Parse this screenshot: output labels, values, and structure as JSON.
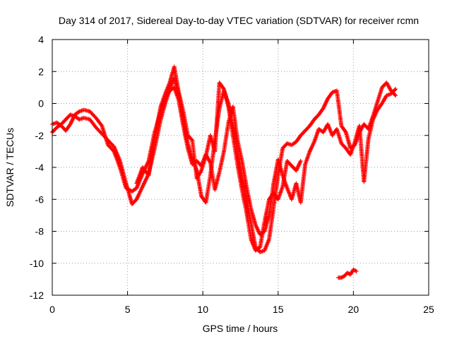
{
  "chart_data": {
    "type": "scatter",
    "title": "Day 314 of 2017, Sidereal Day-to-day VTEC variation (SDTVAR) for receiver rcmn",
    "xlabel": "GPS time / hours",
    "ylabel": "SDTVAR / TECUs",
    "xlim": [
      0,
      25
    ],
    "ylim": [
      -12,
      4
    ],
    "xticks": [
      0,
      5,
      10,
      15,
      20,
      25
    ],
    "yticks": [
      4,
      2,
      0,
      -2,
      -4,
      -6,
      -8,
      -10,
      -12
    ],
    "xtick_labels": [
      "0",
      "5",
      "10",
      "15",
      "20",
      "25"
    ],
    "ytick_labels": [
      "4",
      "2",
      "0",
      "-2",
      "-4",
      "-6",
      "-8",
      "-10",
      "-12"
    ],
    "grid": true,
    "marker": "+",
    "color": "#ff0000",
    "series": [
      {
        "values": [
          [
            0.0,
            -1.8
          ],
          [
            0.3,
            -1.5
          ],
          [
            0.6,
            -1.3
          ],
          [
            0.9,
            -1.0
          ],
          [
            1.2,
            -0.7
          ],
          [
            1.5,
            -0.8
          ],
          [
            1.8,
            -1.0
          ],
          [
            2.1,
            -0.9
          ],
          [
            2.5,
            -1.0
          ],
          [
            2.9,
            -1.5
          ],
          [
            3.3,
            -1.9
          ],
          [
            3.7,
            -2.3
          ],
          [
            4.1,
            -2.7
          ],
          [
            4.5,
            -3.6
          ],
          [
            4.9,
            -5.0
          ],
          [
            5.3,
            -6.3
          ],
          [
            5.6,
            -6.0
          ],
          [
            6.0,
            -5.2
          ],
          [
            6.4,
            -4.4
          ],
          [
            6.8,
            -2.8
          ],
          [
            7.2,
            -1.0
          ],
          [
            7.5,
            0.0
          ],
          [
            7.8,
            0.9
          ],
          [
            8.1,
            1.6
          ],
          [
            8.4,
            0.5
          ],
          [
            8.7,
            -1.0
          ],
          [
            9.0,
            -2.5
          ],
          [
            9.3,
            -3.5
          ],
          [
            9.6,
            -4.2
          ],
          [
            9.9,
            -5.8
          ],
          [
            10.2,
            -6.2
          ],
          [
            10.5,
            -4.5
          ],
          [
            10.8,
            -2.3
          ],
          [
            11.1,
            -0.3
          ],
          [
            11.4,
            0.8
          ],
          [
            11.7,
            0.0
          ],
          [
            12.0,
            -1.5
          ],
          [
            12.3,
            -3.0
          ],
          [
            12.6,
            -4.6
          ],
          [
            12.9,
            -6.0
          ],
          [
            13.2,
            -7.5
          ],
          [
            13.5,
            -9.0
          ],
          [
            13.8,
            -9.3
          ],
          [
            14.1,
            -9.2
          ],
          [
            14.4,
            -8.5
          ],
          [
            14.7,
            -6.5
          ],
          [
            15.0,
            -4.5
          ],
          [
            15.3,
            -2.8
          ],
          [
            15.6,
            -2.5
          ],
          [
            15.9,
            -2.6
          ],
          [
            16.2,
            -2.4
          ],
          [
            16.5,
            -2.0
          ],
          [
            16.8,
            -1.7
          ],
          [
            17.1,
            -1.4
          ],
          [
            17.4,
            -1.0
          ],
          [
            17.7,
            -0.7
          ],
          [
            18.0,
            -0.3
          ],
          [
            18.3,
            0.3
          ],
          [
            18.6,
            0.7
          ],
          [
            18.9,
            0.8
          ],
          [
            19.2,
            -1.4
          ],
          [
            19.5,
            -1.8
          ],
          [
            19.8,
            -2.8
          ],
          [
            20.1,
            -2.6
          ],
          [
            20.4,
            -1.8
          ],
          [
            20.7,
            -1.3
          ],
          [
            21.0,
            -1.6
          ],
          [
            21.3,
            -0.8
          ],
          [
            21.6,
            0.1
          ],
          [
            21.9,
            1.0
          ],
          [
            22.2,
            1.3
          ],
          [
            22.5,
            0.8
          ],
          [
            22.8,
            0.5
          ]
        ]
      },
      {
        "values": [
          [
            0.0,
            -1.3
          ],
          [
            0.3,
            -1.2
          ],
          [
            0.6,
            -1.4
          ],
          [
            0.9,
            -1.7
          ],
          [
            1.2,
            -1.3
          ],
          [
            1.5,
            -0.7
          ],
          [
            1.8,
            -0.5
          ],
          [
            2.1,
            -0.4
          ],
          [
            2.5,
            -0.5
          ],
          [
            2.9,
            -0.9
          ],
          [
            3.3,
            -1.4
          ],
          [
            3.7,
            -2.6
          ],
          [
            4.1,
            -3.0
          ],
          [
            4.5,
            -4.0
          ],
          [
            4.9,
            -5.3
          ],
          [
            5.3,
            -5.5
          ],
          [
            5.6,
            -5.3
          ],
          [
            6.0,
            -4.4
          ],
          [
            6.4,
            -3.6
          ],
          [
            6.8,
            -1.8
          ],
          [
            7.2,
            -0.5
          ],
          [
            7.5,
            0.3
          ],
          [
            7.8,
            0.8
          ],
          [
            8.1,
            1.0
          ],
          [
            8.4,
            0.2
          ],
          [
            8.7,
            -1.4
          ],
          [
            9.0,
            -2.8
          ],
          [
            9.3,
            -3.8
          ],
          [
            9.6,
            -3.6
          ],
          [
            9.9,
            -3.9
          ],
          [
            10.2,
            -3.2
          ],
          [
            10.5,
            -3.7
          ],
          [
            10.8,
            -5.4
          ],
          [
            11.1,
            -4.3
          ],
          [
            11.4,
            -3.0
          ],
          [
            11.7,
            -1.2
          ],
          [
            12.0,
            -0.2
          ],
          [
            12.3,
            -2.3
          ],
          [
            12.6,
            -3.6
          ],
          [
            12.9,
            -5.2
          ],
          [
            13.2,
            -6.6
          ],
          [
            13.5,
            -7.6
          ],
          [
            13.8,
            -8.2
          ],
          [
            14.1,
            -8.0
          ],
          [
            14.4,
            -7.0
          ],
          [
            14.7,
            -5.0
          ],
          [
            15.0,
            -3.5
          ],
          [
            15.3,
            -4.5
          ],
          [
            15.6,
            -5.3
          ],
          [
            15.9,
            -6.0
          ],
          [
            16.2,
            -5.0
          ],
          [
            16.5,
            -6.2
          ],
          [
            16.8,
            -3.8
          ],
          [
            17.1,
            -3.0
          ],
          [
            17.4,
            -2.4
          ],
          [
            17.7,
            -1.6
          ],
          [
            18.0,
            -1.8
          ],
          [
            18.3,
            -1.3
          ],
          [
            18.6,
            -2.0
          ],
          [
            18.9,
            -1.6
          ],
          [
            19.2,
            -2.5
          ],
          [
            19.5,
            -2.8
          ],
          [
            19.8,
            -3.2
          ],
          [
            20.1,
            -2.4
          ],
          [
            20.4,
            -1.4
          ],
          [
            20.7,
            -4.9
          ],
          [
            21.0,
            -2.2
          ],
          [
            21.3,
            -1.0
          ],
          [
            21.6,
            -0.4
          ],
          [
            21.9,
            0.0
          ],
          [
            22.2,
            0.5
          ],
          [
            22.5,
            0.6
          ],
          [
            22.8,
            0.9
          ]
        ]
      },
      {
        "values": [
          [
            5.6,
            -5.0
          ],
          [
            6.0,
            -4.0
          ],
          [
            6.4,
            -4.5
          ],
          [
            6.8,
            -2.2
          ],
          [
            7.2,
            -0.2
          ],
          [
            7.5,
            0.6
          ],
          [
            7.8,
            1.3
          ],
          [
            8.1,
            2.3
          ],
          [
            8.4,
            0.7
          ],
          [
            8.7,
            -0.5
          ],
          [
            9.0,
            -2.0
          ],
          [
            9.3,
            -2.3
          ],
          [
            9.6,
            -4.7
          ],
          [
            9.9,
            -4.2
          ],
          [
            10.2,
            -3.3
          ],
          [
            10.5,
            -2.0
          ],
          [
            10.8,
            -3.0
          ],
          [
            11.1,
            1.3
          ],
          [
            11.4,
            0.9
          ],
          [
            11.7,
            -0.2
          ],
          [
            12.0,
            -2.0
          ],
          [
            12.3,
            -3.8
          ],
          [
            12.6,
            -5.4
          ],
          [
            12.9,
            -6.8
          ],
          [
            13.2,
            -8.5
          ],
          [
            13.5,
            -9.2
          ],
          [
            13.8,
            -9.0
          ],
          [
            14.1,
            -7.4
          ],
          [
            14.4,
            -6.0
          ],
          [
            14.7,
            -5.6
          ],
          [
            15.0,
            -6.0
          ],
          [
            15.3,
            -5.2
          ],
          [
            15.6,
            -3.6
          ],
          [
            15.9,
            -3.9
          ],
          [
            16.2,
            -4.2
          ],
          [
            16.5,
            -3.6
          ]
        ]
      },
      {
        "values": [
          [
            19.0,
            -10.9
          ],
          [
            19.2,
            -10.9
          ],
          [
            19.4,
            -10.8
          ],
          [
            19.6,
            -10.6
          ],
          [
            19.8,
            -10.7
          ],
          [
            20.0,
            -10.4
          ],
          [
            20.2,
            -10.5
          ]
        ]
      }
    ]
  }
}
